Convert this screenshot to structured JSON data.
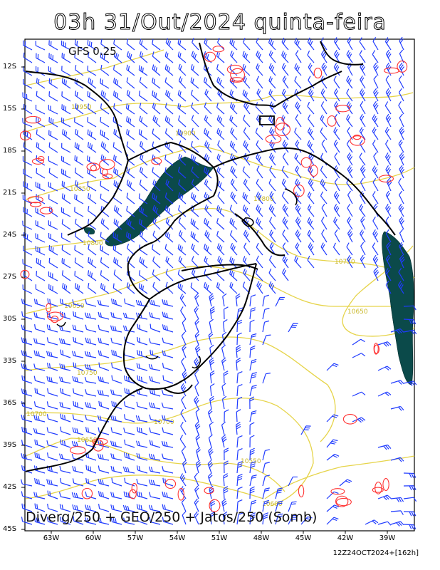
{
  "header": {
    "title": "03h 31/Out/2024 quinta-feira"
  },
  "model": {
    "label": "GFS 0.25"
  },
  "footer": {
    "field_label": "Diverg/250 + GEO/250 + Jatos/250 (Somb)",
    "run_info": "12Z24OCT2024+[162h]"
  },
  "axes": {
    "lat_labels": [
      "12S",
      "15S",
      "18S",
      "21S",
      "24S",
      "27S",
      "30S",
      "33S",
      "36S",
      "39S",
      "42S",
      "45S"
    ],
    "lon_labels": [
      "63W",
      "60W",
      "57W",
      "54W",
      "51W",
      "48W",
      "45W",
      "42W",
      "39W"
    ]
  },
  "contour_labels": [
    "10950",
    "10900",
    "10850",
    "10800",
    "10800",
    "10750",
    "10700",
    "10700",
    "10650",
    "10650",
    "10600",
    "10550",
    "10750",
    "10650"
  ],
  "colors": {
    "divergence": "#ff3333",
    "geopotential": "#e6d44a",
    "wind_barbs": "#1f3bff",
    "jet_fill": "#0b4a4a",
    "boundaries": "#000000"
  }
}
